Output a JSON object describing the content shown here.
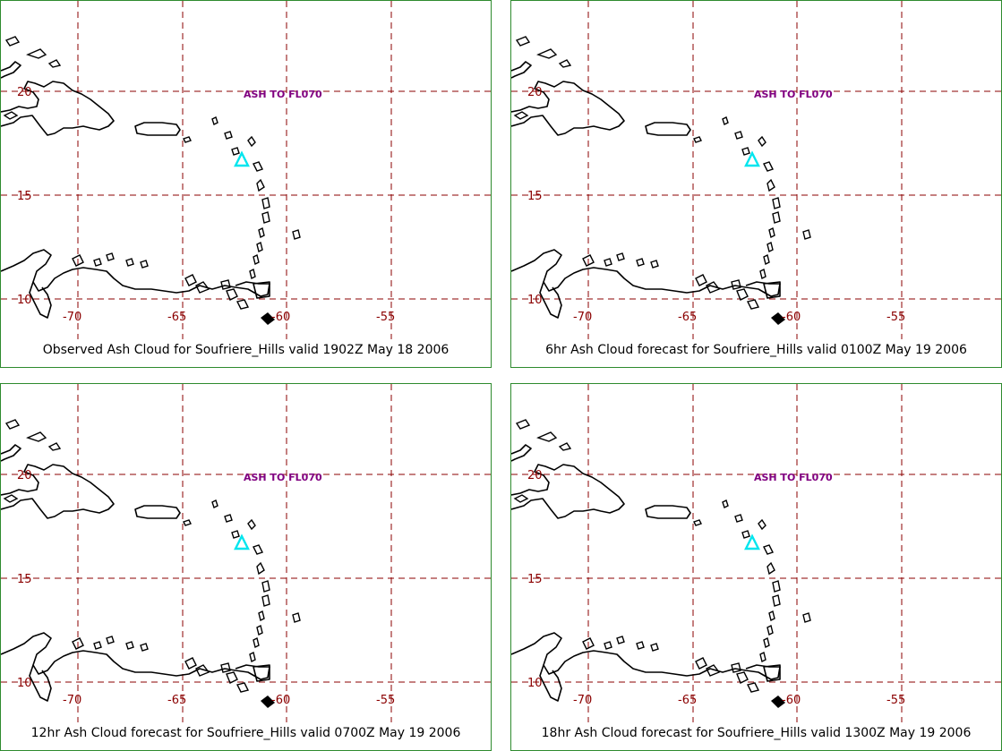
{
  "colors": {
    "border": "#2e8b2e",
    "grid": "#8b0000",
    "coastline": "#000000",
    "ash_label": "#800080",
    "volcano_marker": "#00e5ee"
  },
  "axes": {
    "lat_labels": [
      "20",
      "15",
      "10"
    ],
    "lon_labels": [
      "-70",
      "-65",
      "-60",
      "-55"
    ]
  },
  "panels": [
    {
      "caption": "Observed Ash Cloud for Soufriere_Hills valid 1902Z May 18 2006",
      "ash_label": "ASH TO FL070"
    },
    {
      "caption": "6hr Ash Cloud forecast for Soufriere_Hills valid 0100Z May 19 2006",
      "ash_label": "ASH TO FL070"
    },
    {
      "caption": "12hr Ash Cloud forecast for Soufriere_Hills valid 0700Z May 19 2006",
      "ash_label": "ASH TO FL070"
    },
    {
      "caption": "18hr Ash Cloud forecast for Soufriere_Hills valid 1300Z May 19 2006",
      "ash_label": "ASH TO FL070"
    }
  ]
}
